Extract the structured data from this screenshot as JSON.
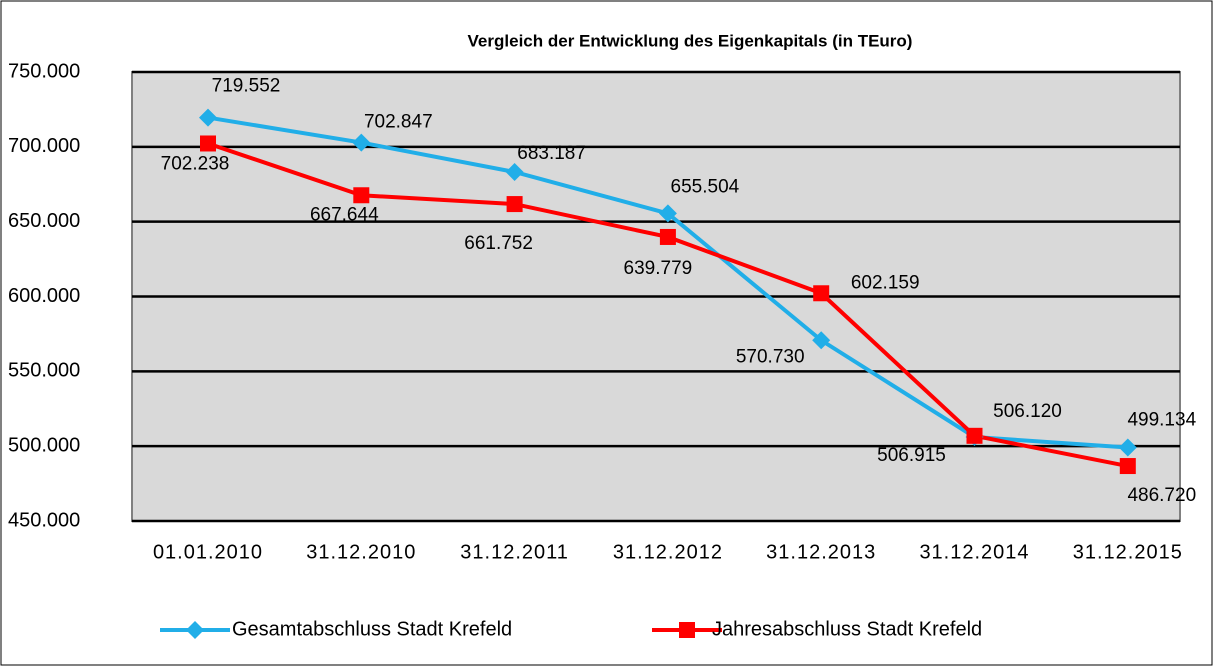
{
  "chart_data": {
    "type": "line",
    "title": "Vergleich der Entwicklung des Eigenkapitals (in TEuro)",
    "categories": [
      "01.01.2010",
      "31.12.2010",
      "31.12.2011",
      "31.12.2012",
      "31.12.2013",
      "31.12.2014",
      "31.12.2015"
    ],
    "series": [
      {
        "name": "Gesamtabschluss Stadt Krefeld",
        "color": "#21aee8",
        "marker": "diamond",
        "values": [
          719552,
          702847,
          683187,
          655504,
          570730,
          506120,
          499134
        ],
        "value_labels": [
          "719.552",
          "702.847",
          "683.187",
          "655.504",
          "570.730",
          "506.120",
          "499.134"
        ]
      },
      {
        "name": "Jahresabschluss Stadt Krefeld",
        "color": "#ff0000",
        "marker": "square",
        "values": [
          702238,
          667644,
          661752,
          639779,
          602159,
          506915,
          486720
        ],
        "value_labels": [
          "702.238",
          "667.644",
          "661.752",
          "639.779",
          "602.159",
          "506.915",
          "486.720"
        ]
      }
    ],
    "ylim": [
      450000,
      750000
    ],
    "yticks": [
      {
        "value": 450000,
        "label": "450.000"
      },
      {
        "value": 500000,
        "label": "500.000"
      },
      {
        "value": 550000,
        "label": "550.000"
      },
      {
        "value": 600000,
        "label": "600.000"
      },
      {
        "value": 650000,
        "label": "650.000"
      },
      {
        "value": 700000,
        "label": "700.000"
      },
      {
        "value": 750000,
        "label": "750.000"
      }
    ],
    "grid": true,
    "legend": "bottom"
  }
}
